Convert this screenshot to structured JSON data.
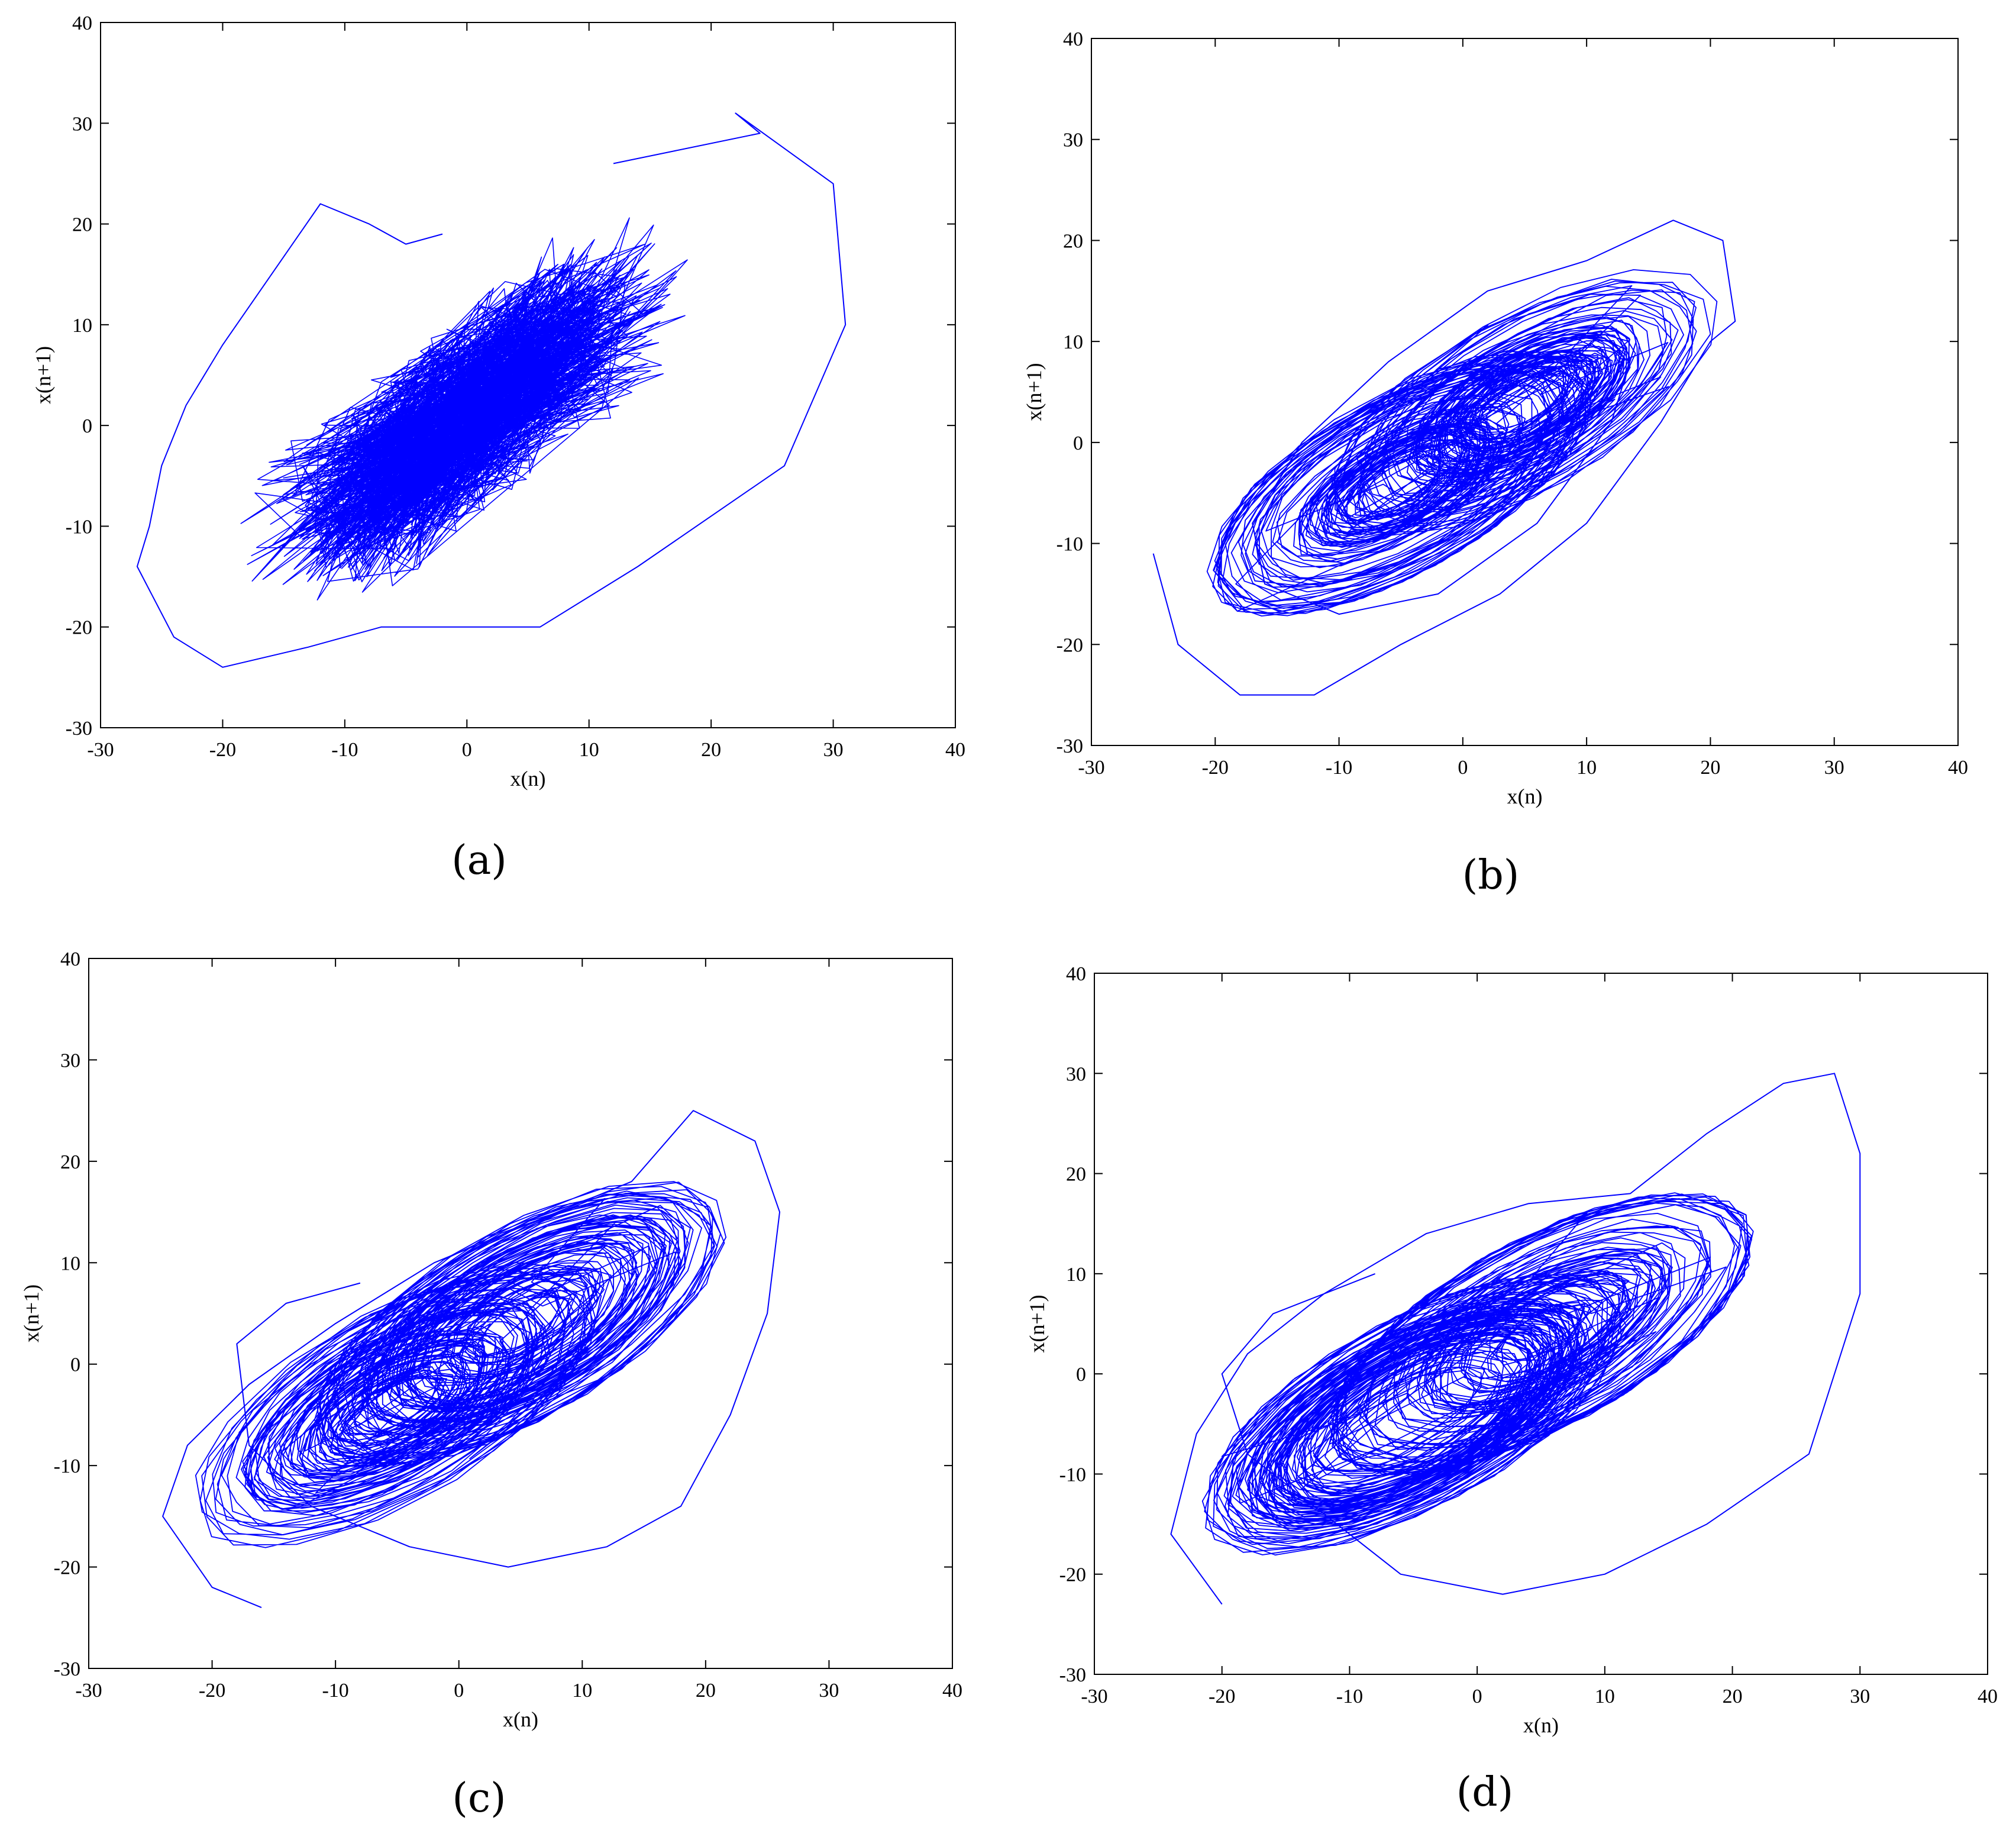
{
  "figure": {
    "panels": [
      {
        "id": "a",
        "caption": "(a)"
      },
      {
        "id": "b",
        "caption": "(b)"
      },
      {
        "id": "c",
        "caption": "(c)"
      },
      {
        "id": "d",
        "caption": "(d)"
      }
    ]
  },
  "chart_data": [
    {
      "panel": "(a)",
      "type": "line",
      "title": "",
      "xlabel": "x(n)",
      "ylabel": "x(n+1)",
      "xlim": [
        -30,
        40
      ],
      "ylim": [
        -30,
        40
      ],
      "xticks": [
        -30,
        -20,
        -10,
        0,
        10,
        20,
        30,
        40
      ],
      "yticks": [
        -30,
        -20,
        -10,
        0,
        10,
        20,
        30,
        40
      ],
      "grid": false,
      "series": [
        {
          "name": "trajectory",
          "color": "#0000ff",
          "x": [
            12,
            24,
            22,
            30,
            31,
            26,
            14,
            6,
            0,
            -7,
            -13,
            -20,
            -24,
            -27,
            -26,
            -25,
            -23,
            -20,
            -16,
            -12,
            -8,
            -5,
            -2
          ],
          "y": [
            26,
            29,
            31,
            24,
            10,
            -4,
            -14,
            -20,
            -20,
            -20,
            -22,
            -24,
            -21,
            -14,
            -10,
            -4,
            2,
            8,
            15,
            22,
            20,
            18,
            19
          ]
        }
      ],
      "note": "Dense chaotic return map of x(n+1) vs x(n); points concentrated along diagonal band from about (-12,-10) to (12,12)."
    },
    {
      "panel": "(b)",
      "type": "line",
      "title": "",
      "xlabel": "x(n)",
      "ylabel": "x(n+1)",
      "xlim": [
        -30,
        40
      ],
      "ylim": [
        -30,
        40
      ],
      "xticks": [
        -30,
        -20,
        -10,
        0,
        10,
        20,
        30,
        40
      ],
      "yticks": [
        -30,
        -20,
        -10,
        0,
        10,
        20,
        30,
        40
      ],
      "grid": false,
      "series": [
        {
          "name": "trajectory",
          "color": "#0000ff",
          "x": [
            -25,
            -23,
            -18,
            -12,
            -5,
            3,
            10,
            16,
            20,
            22,
            21,
            17,
            10,
            2,
            -6,
            -13,
            -17,
            -16,
            -10,
            -2,
            6,
            12,
            14
          ],
          "y": [
            -11,
            -20,
            -25,
            -25,
            -20,
            -15,
            -8,
            2,
            10,
            12,
            20,
            22,
            18,
            15,
            8,
            0,
            -8,
            -14,
            -17,
            -15,
            -8,
            2,
            10
          ]
        }
      ],
      "note": "Attractor loops centered near (0,0) with lobes near (-8,-8) and (8,8)."
    },
    {
      "panel": "(c)",
      "type": "line",
      "title": "",
      "xlabel": "x(n)",
      "ylabel": "x(n+1)",
      "xlim": [
        -30,
        40
      ],
      "ylim": [
        -30,
        40
      ],
      "xticks": [
        -30,
        -20,
        -10,
        0,
        10,
        20,
        30,
        40
      ],
      "yticks": [
        -30,
        -20,
        -10,
        0,
        10,
        20,
        30,
        40
      ],
      "grid": false,
      "series": [
        {
          "name": "trajectory",
          "color": "#0000ff",
          "x": [
            -16,
            -20,
            -24,
            -22,
            -17,
            -10,
            -2,
            6,
            14,
            19,
            24,
            26,
            25,
            22,
            18,
            12,
            4,
            -4,
            -12,
            -17,
            -18,
            -14,
            -8
          ],
          "y": [
            -24,
            -22,
            -15,
            -8,
            -2,
            4,
            10,
            14,
            18,
            25,
            22,
            15,
            5,
            -5,
            -14,
            -18,
            -20,
            -18,
            -14,
            -8,
            2,
            6,
            8
          ]
        }
      ],
      "note": "Attractor elongated along the diagonal, outer loop reaching about (25,25)."
    },
    {
      "panel": "(d)",
      "type": "line",
      "title": "",
      "xlabel": "x(n)",
      "ylabel": "x(n+1)",
      "xlim": [
        -30,
        40
      ],
      "ylim": [
        -30,
        40
      ],
      "xticks": [
        -30,
        -20,
        -10,
        0,
        10,
        20,
        30,
        40
      ],
      "yticks": [
        -30,
        -20,
        -10,
        0,
        10,
        20,
        30,
        40
      ],
      "grid": false,
      "series": [
        {
          "name": "trajectory",
          "color": "#0000ff",
          "x": [
            -20,
            -24,
            -22,
            -18,
            -12,
            -4,
            4,
            12,
            18,
            24,
            28,
            30,
            30,
            26,
            18,
            10,
            2,
            -6,
            -12,
            -18,
            -20,
            -16,
            -8
          ],
          "y": [
            -23,
            -16,
            -6,
            2,
            8,
            14,
            17,
            18,
            24,
            29,
            30,
            22,
            8,
            -8,
            -15,
            -20,
            -22,
            -20,
            -14,
            -8,
            0,
            6,
            10
          ]
        }
      ],
      "note": "Butterfly-like attractor with crossing near (0,0); outer loop up to about (21,30)."
    }
  ]
}
